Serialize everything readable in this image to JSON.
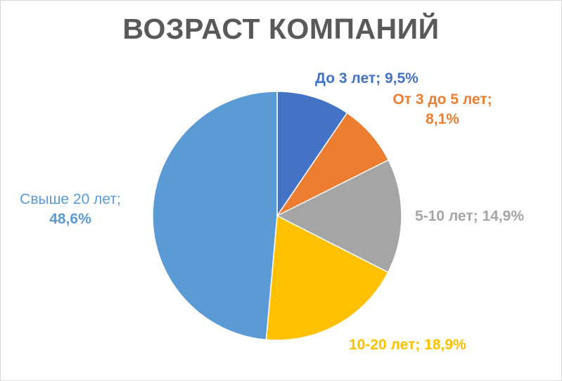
{
  "chart_data": {
    "type": "pie",
    "title": "ВОЗРАСТ КОМПАНИЙ",
    "slices": [
      {
        "name": "До 3 лет",
        "value": 9.5,
        "value_label": "9,5%",
        "color": "#4472c4"
      },
      {
        "name": "От 3 до 5 лет",
        "value": 8.1,
        "value_label": "8,1%",
        "color": "#ed7d31"
      },
      {
        "name": "5-10 лет",
        "value": 14.9,
        "value_label": "14,9%",
        "color": "#a5a5a5"
      },
      {
        "name": "10-20 лет",
        "value": 18.9,
        "value_label": "18,9%",
        "color": "#ffc000"
      },
      {
        "name": "Свыше 20 лет",
        "value": 48.6,
        "value_label": "48,6%",
        "color": "#5b9bd5"
      }
    ],
    "start_angle": "12 o'clock",
    "direction": "clockwise",
    "legend": "none",
    "data_labels": "outside"
  }
}
